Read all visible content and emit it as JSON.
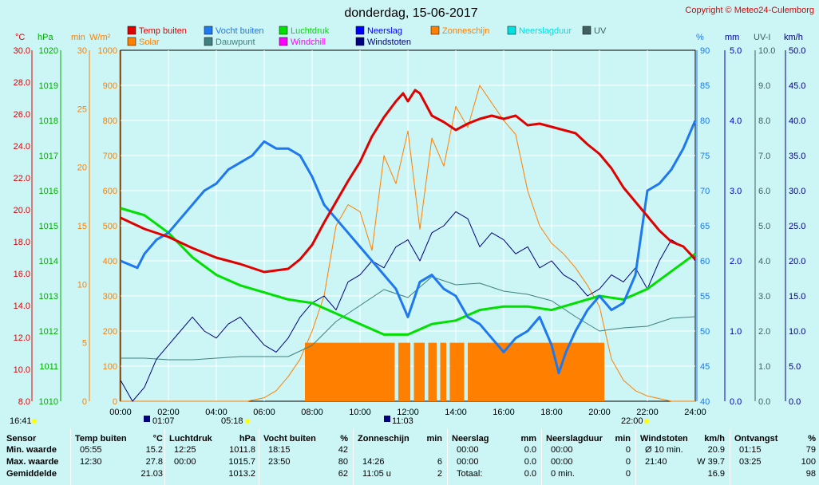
{
  "title": "donderdag, 15-06-2017",
  "copyright": "Copyright © Meteo24-Culemborg",
  "legend": [
    {
      "label": "Temp buiten",
      "color": "#e00000"
    },
    {
      "label": "Vocht buiten",
      "color": "#1e78f0"
    },
    {
      "label": "Luchtdruk",
      "color": "#00e000"
    },
    {
      "label": "Neerslag",
      "color": "#0000ff"
    },
    {
      "label": "Zonneschijn",
      "color": "#ff8000"
    },
    {
      "label": "Neerslagduur",
      "color": "#00e0e0"
    },
    {
      "label": "UV",
      "color": "#406060"
    },
    {
      "label": "Solar",
      "color": "#ff8000"
    },
    {
      "label": "Dauwpunt",
      "color": "#408080"
    },
    {
      "label": "Windchill",
      "color": "#ff00ff"
    },
    {
      "label": "Windstoten",
      "color": "#000080"
    }
  ],
  "axis_units": {
    "temp": "°C",
    "pressure": "hPa",
    "sunshine": "min",
    "solar": "W/m²",
    "humidity": "%",
    "rain": "mm",
    "uv": "UV-I",
    "wind": "km/h"
  },
  "axis_ticks": {
    "temp": [
      "30.0",
      "28.0",
      "26.0",
      "24.0",
      "22.0",
      "20.0",
      "18.0",
      "16.0",
      "14.0",
      "12.0",
      "10.0",
      "8.0"
    ],
    "pressure": [
      "1020",
      "1019",
      "1018",
      "1017",
      "1016",
      "1015",
      "1014",
      "1013",
      "1012",
      "1011",
      "1010"
    ],
    "sunshine": [
      "30",
      "25",
      "20",
      "15",
      "10",
      "5",
      "0"
    ],
    "solar": [
      "1000",
      "900",
      "800",
      "700",
      "600",
      "500",
      "400",
      "300",
      "200",
      "100",
      "0"
    ],
    "humidity": [
      "90",
      "85",
      "80",
      "75",
      "70",
      "65",
      "60",
      "55",
      "50",
      "45",
      "40"
    ],
    "rain": [
      "5.0",
      "4.0",
      "3.0",
      "2.0",
      "1.0",
      "0.0"
    ],
    "uv": [
      "10.0",
      "9.0",
      "8.0",
      "7.0",
      "6.0",
      "5.0",
      "4.0",
      "3.0",
      "2.0",
      "1.0",
      "0.0"
    ],
    "wind": [
      "50.0",
      "45.0",
      "40.0",
      "35.0",
      "30.0",
      "25.0",
      "20.0",
      "15.0",
      "10.0",
      "5.0",
      "0.0"
    ]
  },
  "time_labels": [
    "00:00",
    "02:00",
    "04:00",
    "06:00",
    "08:00",
    "10:00",
    "12:00",
    "14:00",
    "16:00",
    "18:00",
    "20:00",
    "22:00",
    "24:00"
  ],
  "markers": {
    "now": "16:41",
    "moonrise": "01:07",
    "sunrise": "05:18",
    "transit": "11:03",
    "sunset": "22:00"
  },
  "chart_data": {
    "type": "line",
    "x_range": [
      0,
      24
    ],
    "series": [
      {
        "name": "Temp buiten",
        "unit": "°C",
        "range": [
          8,
          30
        ],
        "color": "#e00000",
        "x": [
          0,
          1,
          2,
          3,
          4,
          5,
          6,
          7,
          7.5,
          8,
          8.5,
          9,
          9.5,
          10,
          10.5,
          11,
          11.5,
          11.8,
          12,
          12.3,
          12.5,
          13,
          13.5,
          14,
          14.5,
          15,
          15.5,
          16,
          16.5,
          17,
          17.5,
          18,
          18.5,
          19,
          19.5,
          20,
          20.5,
          21,
          21.5,
          22,
          22.5,
          23,
          23.5,
          24
        ],
        "values": [
          19.5,
          18.8,
          18.3,
          17.6,
          17.0,
          16.6,
          16.1,
          16.3,
          16.9,
          17.8,
          19.2,
          20.5,
          21.8,
          23.0,
          24.6,
          25.8,
          26.8,
          27.3,
          26.8,
          27.5,
          27.3,
          25.9,
          25.5,
          25.0,
          25.4,
          25.7,
          25.9,
          25.7,
          25.9,
          25.3,
          25.4,
          25.2,
          25.0,
          24.8,
          24.1,
          23.5,
          22.6,
          21.4,
          20.5,
          19.6,
          18.7,
          18.0,
          17.7,
          16.9
        ]
      },
      {
        "name": "Vocht buiten",
        "unit": "%",
        "range": [
          40,
          90
        ],
        "color": "#1e78f0",
        "x": [
          0,
          0.7,
          1,
          1.5,
          2,
          2.5,
          3,
          3.5,
          4,
          4.5,
          5,
          5.5,
          6,
          6.5,
          7,
          7.5,
          8,
          8.5,
          9,
          9.5,
          10,
          10.5,
          11,
          11.5,
          12,
          12.5,
          13,
          13.5,
          14,
          14.5,
          15,
          15.5,
          16,
          16.5,
          17,
          17.5,
          18,
          18.3,
          18.6,
          19,
          19.5,
          20,
          20.5,
          21,
          21.5,
          22,
          22.5,
          23,
          23.5,
          24
        ],
        "values": [
          60,
          59,
          61,
          63,
          64,
          66,
          68,
          70,
          71,
          73,
          74,
          75,
          77,
          76,
          76,
          75,
          72,
          68,
          66,
          64,
          62,
          60,
          58,
          56,
          52,
          57,
          58,
          56,
          55,
          52,
          51,
          49,
          47,
          49,
          50,
          52,
          48,
          44,
          47,
          50,
          53,
          55,
          53,
          54,
          58,
          70,
          71,
          73,
          76,
          80
        ]
      },
      {
        "name": "Luchtdruk",
        "unit": "hPa",
        "range": [
          1010,
          1020
        ],
        "color": "#00e000",
        "x": [
          0,
          1,
          2,
          3,
          4,
          5,
          6,
          7,
          8,
          9,
          10,
          11,
          12,
          13,
          14,
          15,
          16,
          17,
          18,
          19,
          20,
          21,
          22,
          23,
          24
        ],
        "values": [
          1015.5,
          1015.3,
          1014.8,
          1014.1,
          1013.6,
          1013.3,
          1013.1,
          1012.9,
          1012.8,
          1012.5,
          1012.2,
          1011.9,
          1011.9,
          1012.2,
          1012.3,
          1012.6,
          1012.7,
          1012.7,
          1012.6,
          1012.8,
          1013.0,
          1012.9,
          1013.2,
          1013.7,
          1014.2
        ]
      },
      {
        "name": "Solar",
        "unit": "W/m²",
        "range": [
          0,
          1000
        ],
        "color": "#ff8000",
        "x": [
          0,
          5.3,
          6,
          6.5,
          7,
          7.5,
          8,
          8.5,
          9,
          9.5,
          10,
          10.5,
          11,
          11.5,
          12,
          12.5,
          13,
          13.5,
          14,
          14.5,
          15,
          15.5,
          16,
          16.5,
          17,
          17.5,
          18,
          18.5,
          19,
          19.5,
          20,
          20.5,
          21,
          21.5,
          22,
          23,
          24
        ],
        "values": [
          0,
          0,
          10,
          30,
          70,
          120,
          200,
          300,
          500,
          560,
          540,
          430,
          700,
          620,
          770,
          490,
          750,
          670,
          840,
          780,
          900,
          850,
          800,
          760,
          600,
          500,
          450,
          420,
          380,
          330,
          270,
          120,
          60,
          30,
          15,
          0,
          0
        ]
      },
      {
        "name": "Windstoten",
        "unit": "km/h",
        "range": [
          0,
          50
        ],
        "color": "#000080",
        "x": [
          0,
          0.5,
          1,
          1.5,
          2,
          2.5,
          3,
          3.5,
          4,
          4.5,
          5,
          5.5,
          6,
          6.5,
          7,
          7.5,
          8,
          8.5,
          9,
          9.5,
          10,
          10.5,
          11,
          11.5,
          12,
          12.5,
          13,
          13.5,
          14,
          14.5,
          15,
          15.5,
          16,
          16.5,
          17,
          17.5,
          18,
          18.5,
          19,
          19.5,
          20,
          20.5,
          21,
          21.5,
          22,
          22.5,
          23,
          23.5,
          24
        ],
        "values": [
          3,
          0,
          2,
          6,
          8,
          10,
          12,
          10,
          9,
          11,
          12,
          10,
          8,
          7,
          9,
          12,
          14,
          15,
          13,
          17,
          18,
          20,
          19,
          22,
          23,
          20,
          24,
          25,
          27,
          26,
          22,
          24,
          23,
          21,
          22,
          19,
          20,
          18,
          17,
          15,
          16,
          18,
          17,
          19,
          16,
          20,
          23,
          22,
          20
        ]
      },
      {
        "name": "Dauwpunt",
        "unit": "°C",
        "range": [
          8,
          30
        ],
        "color": "#408080",
        "x": [
          0,
          1,
          2,
          3,
          4,
          5,
          6,
          7,
          8,
          9,
          10,
          11,
          12,
          13,
          14,
          15,
          16,
          17,
          18,
          19,
          20,
          21,
          22,
          23,
          24
        ],
        "values": [
          10.7,
          10.7,
          10.6,
          10.6,
          10.7,
          10.8,
          10.8,
          10.8,
          11.5,
          13.0,
          14.0,
          15.0,
          14.5,
          15.8,
          15.3,
          15.4,
          14.9,
          14.7,
          14.3,
          13.3,
          12.4,
          12.6,
          12.7,
          13.2,
          13.3
        ]
      }
    ],
    "sunshine_bars": {
      "unit": "min",
      "range": [
        0,
        30
      ],
      "from": 7.7,
      "to": 20.2,
      "value": 5
    },
    "rain": {
      "unit": "mm",
      "values": [
        0
      ]
    }
  },
  "stats": {
    "headers": {
      "sensor": "Sensor",
      "temp": "Temp buiten",
      "temp_u": "°C",
      "press": "Luchtdruk",
      "press_u": "hPa",
      "hum": "Vocht buiten",
      "hum_u": "%",
      "sun": "Zonneschijn",
      "sun_u": "min",
      "rain": "Neerslag",
      "rain_u": "mm",
      "rdur": "Neerslagduur",
      "rdur_u": "min",
      "wind": "Windstoten",
      "wind_u": "km/h",
      "rx": "Ontvangst",
      "rx_u": "%"
    },
    "rows": [
      {
        "label": "Min. waarde",
        "temp_t": "05:55",
        "temp_v": "15.2",
        "press_t": "12:25",
        "press_v": "1011.8",
        "hum_t": "18:15",
        "hum_v": "42",
        "sun_t": "",
        "sun_v": "",
        "rain_t": "00:00",
        "rain_v": "0.0",
        "rdur_t": "00:00",
        "rdur_v": "0",
        "wind_t": "Ø 10 min.",
        "wind_v": "20.9",
        "rx_t": "01:15",
        "rx_v": "79"
      },
      {
        "label": "Max. waarde",
        "temp_t": "12:30",
        "temp_v": "27.8",
        "press_t": "00:00",
        "press_v": "1015.7",
        "hum_t": "23:50",
        "hum_v": "80",
        "sun_t": "14:26",
        "sun_v": "6",
        "rain_t": "00:00",
        "rain_v": "0.0",
        "rdur_t": "00:00",
        "rdur_v": "0",
        "wind_t": "21:40",
        "wind_v": "W 39.7",
        "rx_t": "03:25",
        "rx_v": "100"
      },
      {
        "label": "Gemiddelde",
        "temp_t": "",
        "temp_v": "21.03",
        "press_t": "",
        "press_v": "1013.2",
        "hum_t": "",
        "hum_v": "62",
        "sun_t": "11:05 u",
        "sun_v": "2",
        "rain_t": "Totaal:",
        "rain_v": "0.0",
        "rdur_t": "0 min.",
        "rdur_v": "0",
        "wind_t": "",
        "wind_v": "16.9",
        "rx_t": "",
        "rx_v": "98"
      }
    ]
  }
}
